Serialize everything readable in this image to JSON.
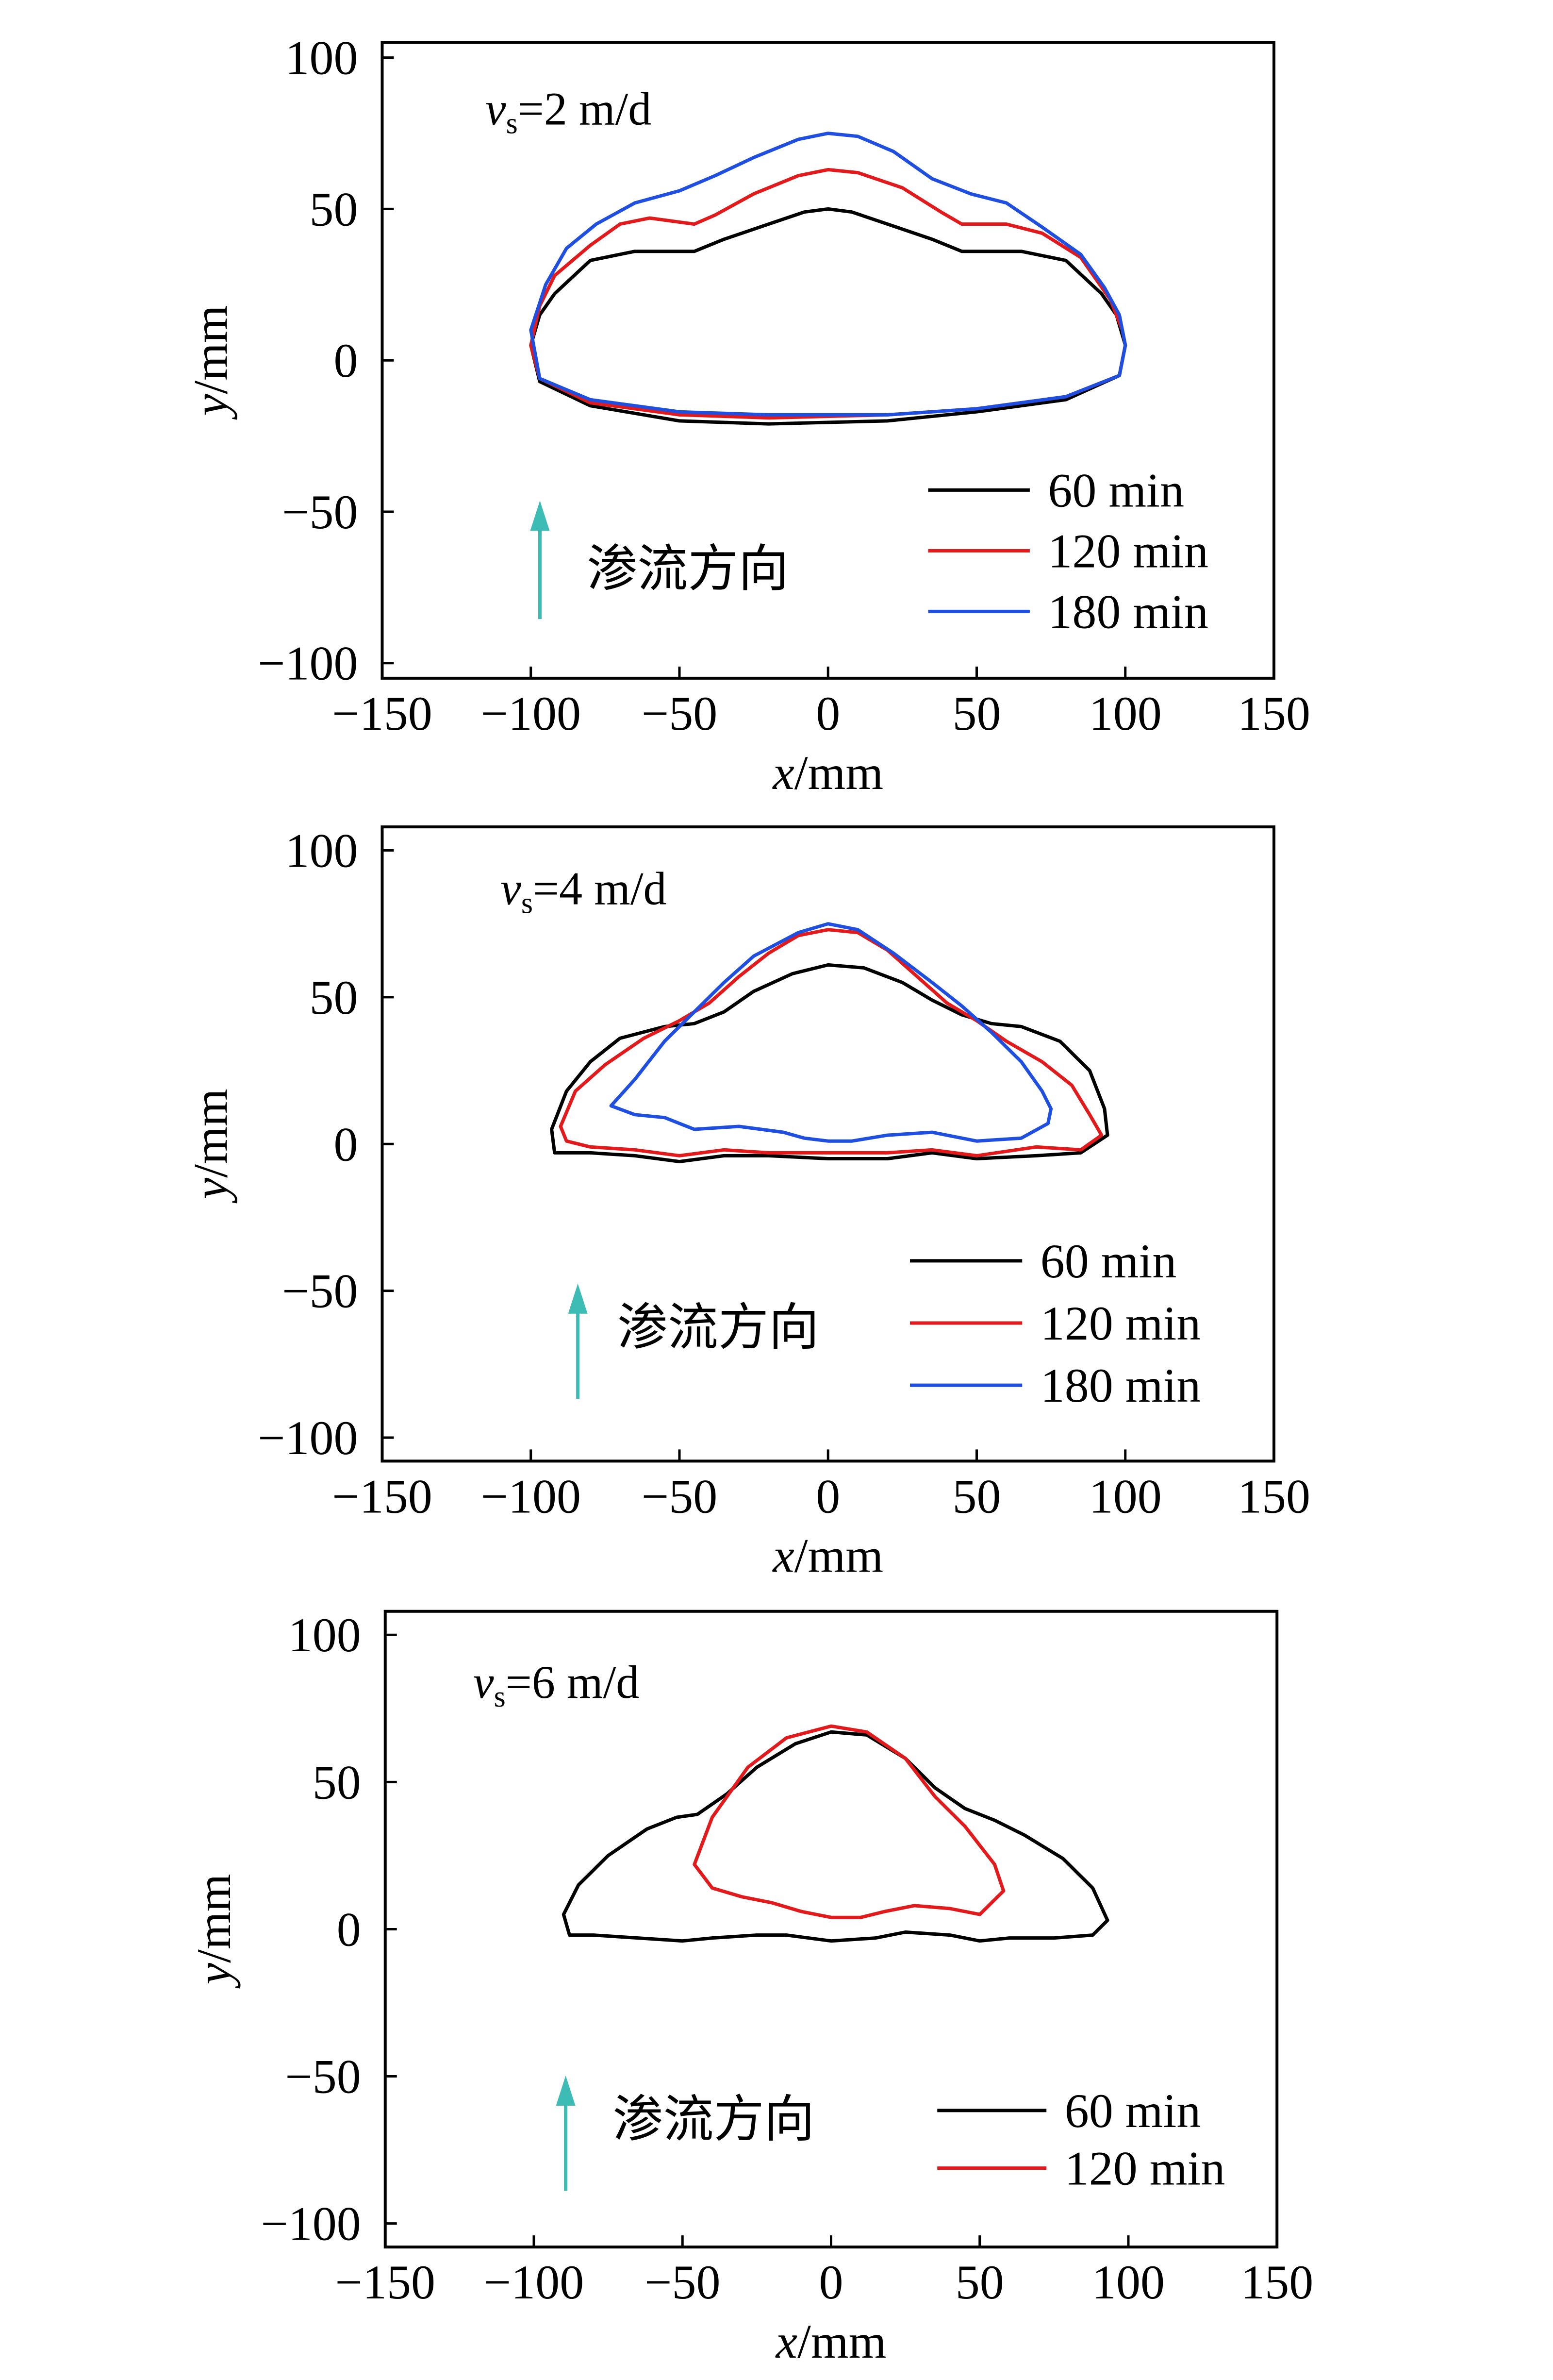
{
  "colors": {
    "series": [
      "#000000",
      "#e31a1c",
      "#1f4fe0"
    ],
    "arrow": "#3cbcb4",
    "axis": "#000000"
  },
  "chart_data": [
    {
      "type": "line",
      "annotation": {
        "prefix": "v",
        "sub": "s",
        "suffix": "=2 m/d"
      },
      "flow_direction_label": "渗流方向",
      "xlabel": {
        "var": "x",
        "unit": "/mm"
      },
      "ylabel": {
        "var": "y",
        "unit": "/mm"
      },
      "xlim": [
        -150,
        150
      ],
      "ylim": [
        -105,
        105
      ],
      "xticks": [
        -150,
        -100,
        -50,
        0,
        50,
        100,
        150
      ],
      "yticks": [
        100,
        50,
        0,
        -50,
        -100
      ],
      "legend_position": "bottom-right",
      "series": [
        {
          "name": "60 min",
          "points": [
            [
              -100,
              5
            ],
            [
              -97,
              15
            ],
            [
              -92,
              22
            ],
            [
              -80,
              33
            ],
            [
              -65,
              36
            ],
            [
              -45,
              36
            ],
            [
              -35,
              40
            ],
            [
              -20,
              45
            ],
            [
              -8,
              49
            ],
            [
              0,
              50
            ],
            [
              8,
              49
            ],
            [
              20,
              45
            ],
            [
              35,
              40
            ],
            [
              45,
              36
            ],
            [
              65,
              36
            ],
            [
              80,
              33
            ],
            [
              92,
              22
            ],
            [
              97,
              15
            ],
            [
              100,
              5
            ],
            [
              98,
              -5
            ],
            [
              80,
              -13
            ],
            [
              50,
              -17
            ],
            [
              20,
              -20
            ],
            [
              -20,
              -21
            ],
            [
              -50,
              -20
            ],
            [
              -80,
              -15
            ],
            [
              -97,
              -7
            ],
            [
              -100,
              5
            ]
          ]
        },
        {
          "name": "120 min",
          "points": [
            [
              -100,
              5
            ],
            [
              -97,
              18
            ],
            [
              -92,
              28
            ],
            [
              -80,
              38
            ],
            [
              -70,
              45
            ],
            [
              -60,
              47
            ],
            [
              -45,
              45
            ],
            [
              -38,
              48
            ],
            [
              -25,
              55
            ],
            [
              -10,
              61
            ],
            [
              0,
              63
            ],
            [
              10,
              62
            ],
            [
              25,
              57
            ],
            [
              38,
              49
            ],
            [
              45,
              45
            ],
            [
              60,
              45
            ],
            [
              72,
              42
            ],
            [
              85,
              34
            ],
            [
              95,
              20
            ],
            [
              99,
              10
            ],
            [
              100,
              5
            ],
            [
              98,
              -5
            ],
            [
              80,
              -12
            ],
            [
              50,
              -16
            ],
            [
              20,
              -18
            ],
            [
              -20,
              -19
            ],
            [
              -50,
              -18
            ],
            [
              -80,
              -14
            ],
            [
              -97,
              -6
            ],
            [
              -100,
              5
            ]
          ]
        },
        {
          "name": "180 min",
          "points": [
            [
              -100,
              10
            ],
            [
              -95,
              25
            ],
            [
              -88,
              37
            ],
            [
              -78,
              45
            ],
            [
              -65,
              52
            ],
            [
              -50,
              56
            ],
            [
              -38,
              61
            ],
            [
              -25,
              67
            ],
            [
              -10,
              73
            ],
            [
              0,
              75
            ],
            [
              10,
              74
            ],
            [
              22,
              69
            ],
            [
              35,
              60
            ],
            [
              48,
              55
            ],
            [
              60,
              52
            ],
            [
              72,
              44
            ],
            [
              85,
              35
            ],
            [
              93,
              24
            ],
            [
              98,
              15
            ],
            [
              100,
              5
            ],
            [
              98,
              -5
            ],
            [
              80,
              -12
            ],
            [
              50,
              -16
            ],
            [
              20,
              -18
            ],
            [
              -20,
              -18
            ],
            [
              -50,
              -17
            ],
            [
              -80,
              -13
            ],
            [
              -97,
              -6
            ],
            [
              -100,
              10
            ]
          ]
        }
      ]
    },
    {
      "type": "line",
      "annotation": {
        "prefix": "v",
        "sub": "s",
        "suffix": "=4 m/d"
      },
      "flow_direction_label": "渗流方向",
      "xlabel": {
        "var": "x",
        "unit": "/mm"
      },
      "ylabel": {
        "var": "y",
        "unit": "/mm"
      },
      "xlim": [
        -150,
        150
      ],
      "ylim": [
        -108,
        108
      ],
      "xticks": [
        -150,
        -100,
        -50,
        0,
        50,
        100,
        150
      ],
      "yticks": [
        100,
        50,
        0,
        -50,
        -100
      ],
      "legend_position": "bottom-right",
      "series": [
        {
          "name": "60 min",
          "points": [
            [
              -93,
              5
            ],
            [
              -88,
              18
            ],
            [
              -80,
              28
            ],
            [
              -70,
              36
            ],
            [
              -55,
              40
            ],
            [
              -45,
              41
            ],
            [
              -35,
              45
            ],
            [
              -25,
              52
            ],
            [
              -12,
              58
            ],
            [
              0,
              61
            ],
            [
              12,
              60
            ],
            [
              25,
              55
            ],
            [
              35,
              49
            ],
            [
              45,
              44
            ],
            [
              55,
              41
            ],
            [
              65,
              40
            ],
            [
              78,
              35
            ],
            [
              88,
              25
            ],
            [
              93,
              12
            ],
            [
              94,
              3
            ],
            [
              85,
              -3
            ],
            [
              70,
              -4
            ],
            [
              50,
              -5
            ],
            [
              35,
              -3
            ],
            [
              20,
              -5
            ],
            [
              0,
              -5
            ],
            [
              -20,
              -4
            ],
            [
              -35,
              -4
            ],
            [
              -50,
              -6
            ],
            [
              -65,
              -4
            ],
            [
              -80,
              -3
            ],
            [
              -92,
              -3
            ],
            [
              -93,
              5
            ]
          ]
        },
        {
          "name": "120 min",
          "points": [
            [
              -90,
              6
            ],
            [
              -85,
              18
            ],
            [
              -75,
              27
            ],
            [
              -62,
              36
            ],
            [
              -50,
              42
            ],
            [
              -40,
              48
            ],
            [
              -30,
              57
            ],
            [
              -20,
              65
            ],
            [
              -10,
              71
            ],
            [
              0,
              73
            ],
            [
              10,
              72
            ],
            [
              20,
              66
            ],
            [
              30,
              57
            ],
            [
              40,
              48
            ],
            [
              50,
              42
            ],
            [
              60,
              35
            ],
            [
              72,
              28
            ],
            [
              82,
              20
            ],
            [
              88,
              10
            ],
            [
              92,
              3
            ],
            [
              85,
              -2
            ],
            [
              70,
              -1
            ],
            [
              50,
              -4
            ],
            [
              35,
              -2
            ],
            [
              20,
              -3
            ],
            [
              0,
              -3
            ],
            [
              -20,
              -3
            ],
            [
              -35,
              -2
            ],
            [
              -50,
              -4
            ],
            [
              -65,
              -2
            ],
            [
              -80,
              -1
            ],
            [
              -88,
              1
            ],
            [
              -90,
              6
            ]
          ]
        },
        {
          "name": "180 min",
          "points": [
            [
              -73,
              13
            ],
            [
              -65,
              22
            ],
            [
              -55,
              35
            ],
            [
              -45,
              45
            ],
            [
              -35,
              55
            ],
            [
              -25,
              64
            ],
            [
              -10,
              72
            ],
            [
              0,
              75
            ],
            [
              10,
              73
            ],
            [
              22,
              65
            ],
            [
              35,
              55
            ],
            [
              45,
              47
            ],
            [
              55,
              38
            ],
            [
              65,
              28
            ],
            [
              72,
              18
            ],
            [
              75,
              12
            ],
            [
              74,
              7
            ],
            [
              65,
              2
            ],
            [
              50,
              1
            ],
            [
              35,
              4
            ],
            [
              20,
              3
            ],
            [
              8,
              1
            ],
            [
              0,
              1
            ],
            [
              -8,
              2
            ],
            [
              -15,
              4
            ],
            [
              -30,
              6
            ],
            [
              -45,
              5
            ],
            [
              -55,
              9
            ],
            [
              -65,
              10
            ],
            [
              -73,
              13
            ]
          ]
        }
      ]
    },
    {
      "type": "line",
      "annotation": {
        "prefix": "v",
        "sub": "s",
        "suffix": "=6 m/d"
      },
      "flow_direction_label": "渗流方向",
      "xlabel": {
        "var": "x",
        "unit": "/mm"
      },
      "ylabel": {
        "var": "y",
        "unit": "/mm"
      },
      "xlim": [
        -150,
        150
      ],
      "ylim": [
        -108,
        108
      ],
      "xticks": [
        -150,
        -100,
        -50,
        0,
        50,
        100,
        150
      ],
      "yticks": [
        100,
        50,
        0,
        -50,
        -100
      ],
      "legend_position": "bottom-right",
      "series": [
        {
          "name": "60 min",
          "points": [
            [
              -90,
              5
            ],
            [
              -85,
              15
            ],
            [
              -75,
              25
            ],
            [
              -62,
              34
            ],
            [
              -52,
              38
            ],
            [
              -45,
              39
            ],
            [
              -35,
              46
            ],
            [
              -25,
              55
            ],
            [
              -12,
              63
            ],
            [
              0,
              67
            ],
            [
              12,
              66
            ],
            [
              25,
              58
            ],
            [
              35,
              48
            ],
            [
              45,
              41
            ],
            [
              55,
              37
            ],
            [
              65,
              32
            ],
            [
              78,
              24
            ],
            [
              88,
              14
            ],
            [
              93,
              3
            ],
            [
              88,
              -2
            ],
            [
              75,
              -3
            ],
            [
              60,
              -3
            ],
            [
              50,
              -4
            ],
            [
              40,
              -2
            ],
            [
              25,
              -1
            ],
            [
              15,
              -3
            ],
            [
              0,
              -4
            ],
            [
              -15,
              -2
            ],
            [
              -25,
              -2
            ],
            [
              -40,
              -3
            ],
            [
              -50,
              -4
            ],
            [
              -65,
              -3
            ],
            [
              -80,
              -2
            ],
            [
              -88,
              -2
            ],
            [
              -90,
              5
            ]
          ]
        },
        {
          "name": "120 min",
          "points": [
            [
              -46,
              22
            ],
            [
              -40,
              38
            ],
            [
              -28,
              55
            ],
            [
              -15,
              65
            ],
            [
              0,
              69
            ],
            [
              12,
              67
            ],
            [
              25,
              58
            ],
            [
              35,
              45
            ],
            [
              45,
              35
            ],
            [
              55,
              22
            ],
            [
              58,
              13
            ],
            [
              50,
              5
            ],
            [
              40,
              7
            ],
            [
              28,
              8
            ],
            [
              18,
              6
            ],
            [
              10,
              4
            ],
            [
              0,
              4
            ],
            [
              -10,
              6
            ],
            [
              -20,
              9
            ],
            [
              -30,
              11
            ],
            [
              -40,
              14
            ],
            [
              -46,
              22
            ]
          ]
        }
      ]
    }
  ]
}
